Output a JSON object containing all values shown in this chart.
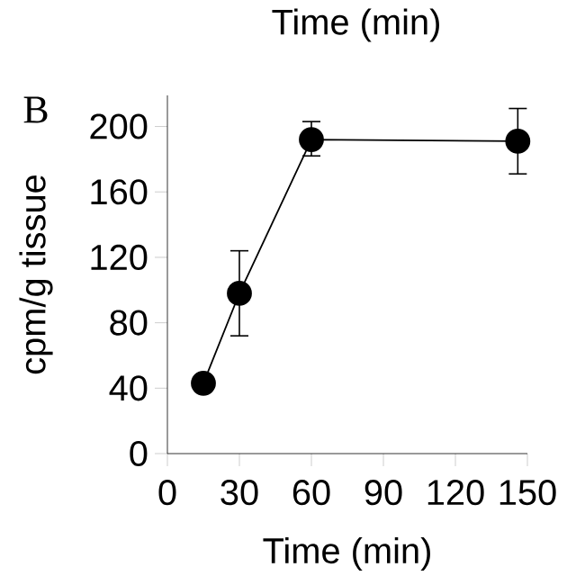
{
  "chart_data": {
    "type": "line",
    "xlabel": "Time (min)",
    "ylabel": "cpm/g tissue",
    "annotations": [
      "Time (min)",
      "B"
    ],
    "x": [
      15,
      30,
      60,
      146
    ],
    "series": [
      {
        "color": "#000000",
        "values": [
          43,
          98,
          192,
          191
        ],
        "errors": [
          null,
          [
            72,
            124
          ],
          [
            182,
            203
          ],
          [
            171,
            211
          ]
        ]
      }
    ],
    "xlim": [
      0,
      150
    ],
    "ylim": [
      0,
      219
    ],
    "xticks": [
      0,
      30,
      60,
      90,
      120,
      150
    ],
    "yticks": [
      0,
      40,
      80,
      120,
      160,
      200
    ],
    "marker": "circle",
    "line_style": "solid",
    "grid": false
  }
}
